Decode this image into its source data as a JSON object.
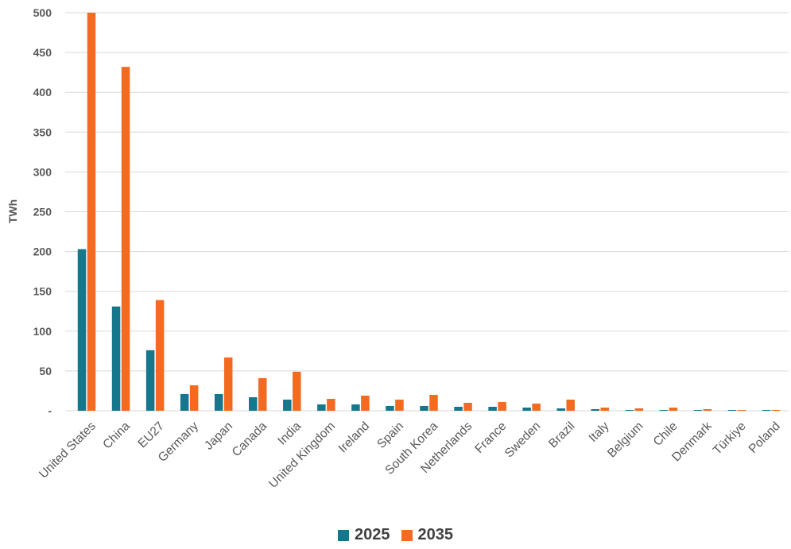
{
  "chart_data": {
    "type": "bar",
    "ylabel": "TWh",
    "xlabel": "",
    "ylim": [
      0,
      500
    ],
    "yticks": [
      0,
      50,
      100,
      150,
      200,
      250,
      300,
      350,
      400,
      450,
      500
    ],
    "ytick_labels": [
      "-",
      "50",
      "100",
      "150",
      "200",
      "250",
      "300",
      "350",
      "400",
      "450",
      "500"
    ],
    "grid": true,
    "legend_position": "bottom-center",
    "categories": [
      "United States",
      "China",
      "EU27",
      "Germany",
      "Japan",
      "Canada",
      "India",
      "United Kingdom",
      "Ireland",
      "Spain",
      "South Korea",
      "Netherlands",
      "France",
      "Sweden",
      "Brazil",
      "Italy",
      "Belgium",
      "Chile",
      "Denmark",
      "Türkiye",
      "Poland"
    ],
    "series": [
      {
        "name": "2025",
        "color": "#14778B",
        "values": [
          203,
          131,
          76,
          21,
          21,
          17,
          14,
          8,
          8,
          6,
          6,
          5,
          5,
          4,
          3,
          2,
          1,
          1,
          1,
          1,
          1
        ]
      },
      {
        "name": "2035",
        "color": "#F26B21",
        "values": [
          500,
          432,
          139,
          32,
          67,
          41,
          49,
          15,
          19,
          14,
          20,
          10,
          11,
          9,
          14,
          4,
          3,
          4,
          2,
          1,
          1
        ]
      }
    ]
  }
}
